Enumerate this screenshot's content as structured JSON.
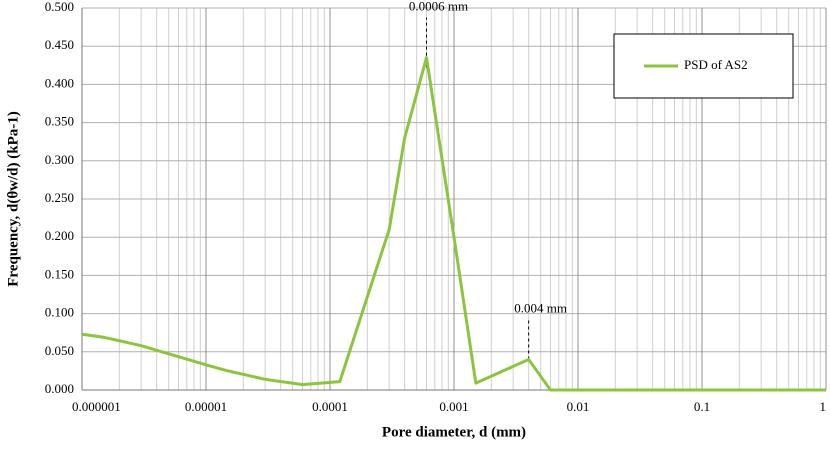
{
  "chart_data": {
    "type": "line",
    "x_label": "Pore diameter, d (mm)",
    "y_label": "Frequency, d(θw/d) (kPa-1)",
    "x_scale": "log",
    "grid": true,
    "minor_grid": true,
    "legend_position": "upper right",
    "xlim": [
      1e-06,
      1
    ],
    "xticks": [
      1e-06,
      1e-05,
      0.0001,
      0.001,
      0.01,
      0.1,
      1
    ],
    "ylim": [
      0,
      0.5
    ],
    "yticks": [
      {
        "value": 0,
        "label": "0.000"
      },
      {
        "value": 0.05,
        "label": "0.050"
      },
      {
        "value": 0.1,
        "label": "0.100"
      },
      {
        "value": 0.15,
        "label": "0.150"
      },
      {
        "value": 0.2,
        "label": "0.200"
      },
      {
        "value": 0.25,
        "label": "0.250"
      },
      {
        "value": 0.3,
        "label": "0.300"
      },
      {
        "value": 0.35,
        "label": "0.350"
      },
      {
        "value": 0.4,
        "label": "0.400"
      },
      {
        "value": 0.45,
        "label": "0.450"
      },
      {
        "value": 0.5,
        "label": "0.500"
      }
    ],
    "x": [
      1e-06,
      1.5e-06,
      3e-06,
      1e-05,
      1.5e-05,
      3e-05,
      6e-05,
      0.00012,
      0.0003,
      0.0004,
      0.0006,
      0.001,
      0.0015,
      0.004,
      0.006,
      0.01,
      0.1,
      1
    ],
    "series": [
      {
        "name": "PSD of AS2",
        "color": "#8cc43f",
        "values": [
          0.073,
          0.069,
          0.058,
          0.033,
          0.025,
          0.014,
          0.007,
          0.011,
          0.21,
          0.33,
          0.435,
          0.2,
          0.009,
          0.04,
          0,
          0,
          0,
          0
        ]
      }
    ],
    "annotations": [
      {
        "text": "0.0006 mm",
        "x": 0.0006,
        "y": 0.435
      },
      {
        "text": "0.004 mm",
        "x": 0.004,
        "y": 0.04
      }
    ]
  }
}
